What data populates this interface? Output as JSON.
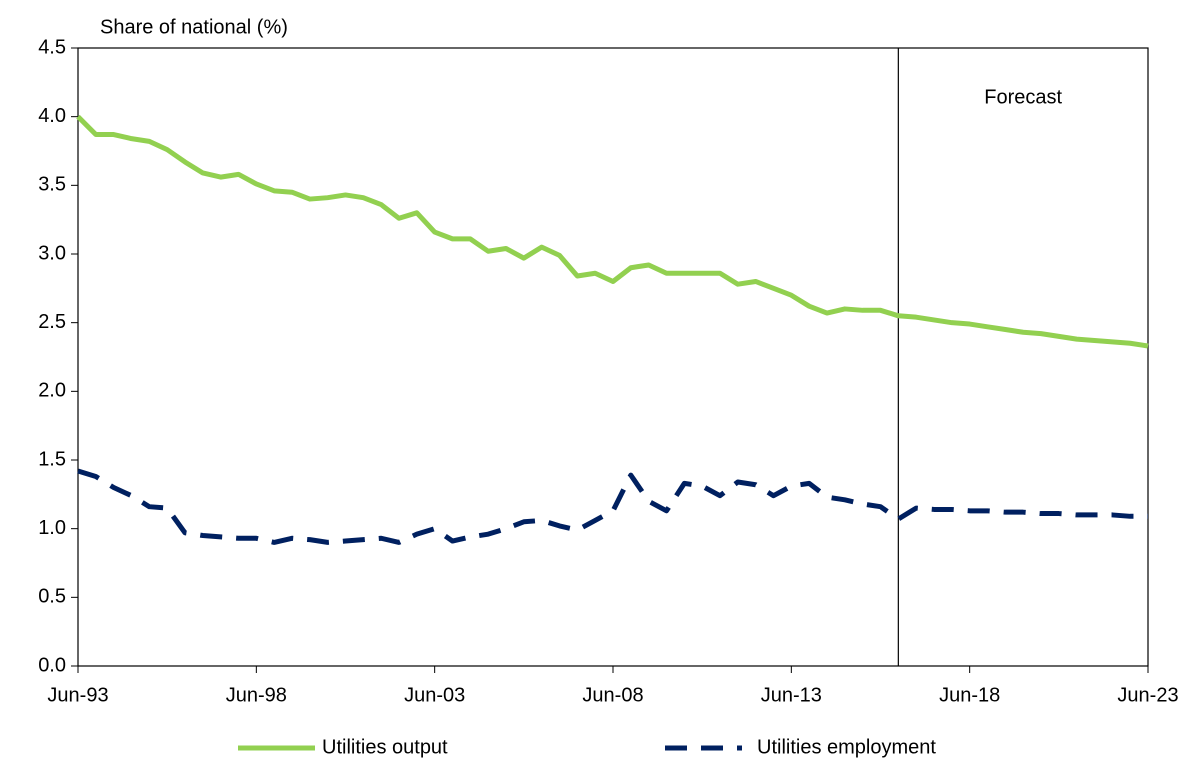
{
  "chart_data": {
    "type": "line",
    "y_axis_label": "Share of national (%)",
    "categories": [
      "Jun-93",
      null,
      null,
      null,
      null,
      null,
      null,
      null,
      null,
      null,
      "Jun-98",
      null,
      null,
      null,
      null,
      null,
      null,
      null,
      null,
      null,
      "Jun-03",
      null,
      null,
      null,
      null,
      null,
      null,
      null,
      null,
      null,
      "Jun-08",
      null,
      null,
      null,
      null,
      null,
      null,
      null,
      null,
      null,
      "Jun-13",
      null,
      null,
      null,
      null,
      null,
      null,
      null,
      null,
      null,
      "Jun-18",
      null,
      null,
      null,
      null,
      null,
      null,
      null,
      null,
      null,
      "Jun-23"
    ],
    "series": [
      {
        "name": "Utilities output",
        "color": "#92d050",
        "dash": "solid",
        "values": [
          4.0,
          3.87,
          3.87,
          3.84,
          3.82,
          3.76,
          3.67,
          3.59,
          3.56,
          3.58,
          3.51,
          3.46,
          3.45,
          3.4,
          3.41,
          3.43,
          3.41,
          3.36,
          3.26,
          3.3,
          3.16,
          3.11,
          3.11,
          3.02,
          3.04,
          2.97,
          3.05,
          2.99,
          2.84,
          2.86,
          2.8,
          2.9,
          2.92,
          2.86,
          2.86,
          2.86,
          2.86,
          2.78,
          2.8,
          2.75,
          2.7,
          2.62,
          2.57,
          2.6,
          2.59,
          2.59,
          2.55,
          2.54,
          2.52,
          2.5,
          2.49,
          2.47,
          2.45,
          2.43,
          2.42,
          2.4,
          2.38,
          2.37,
          2.36,
          2.35,
          2.33
        ]
      },
      {
        "name": "Utilities employment",
        "color": "#002060",
        "dash": "dashed",
        "values": [
          1.42,
          1.38,
          1.3,
          1.24,
          1.16,
          1.15,
          0.97,
          0.95,
          0.94,
          0.93,
          0.93,
          0.9,
          0.93,
          0.92,
          0.9,
          0.91,
          0.92,
          0.93,
          0.9,
          0.96,
          1.0,
          0.91,
          0.94,
          0.96,
          1.0,
          1.05,
          1.06,
          1.02,
          0.99,
          1.06,
          1.13,
          1.39,
          1.2,
          1.13,
          1.33,
          1.31,
          1.24,
          1.34,
          1.32,
          1.24,
          1.31,
          1.33,
          1.23,
          1.21,
          1.18,
          1.16,
          1.07,
          1.15,
          1.14,
          1.14,
          1.13,
          1.13,
          1.12,
          1.12,
          1.11,
          1.11,
          1.1,
          1.1,
          1.1,
          1.09,
          1.09
        ]
      }
    ],
    "annotations": [
      {
        "text": "Forecast",
        "x_index": 46
      }
    ],
    "ylim": [
      0,
      4.5
    ],
    "yticks": [
      {
        "value": 0,
        "label": "0.0"
      },
      0.5,
      {
        "value": 1,
        "label": "1.0"
      },
      1.5,
      {
        "value": 2,
        "label": "2.0"
      },
      2.5,
      {
        "value": 3,
        "label": "3.0"
      },
      3.5,
      {
        "value": 4,
        "label": "4.0"
      },
      4.5
    ],
    "grid": false,
    "legend": "bottom"
  }
}
